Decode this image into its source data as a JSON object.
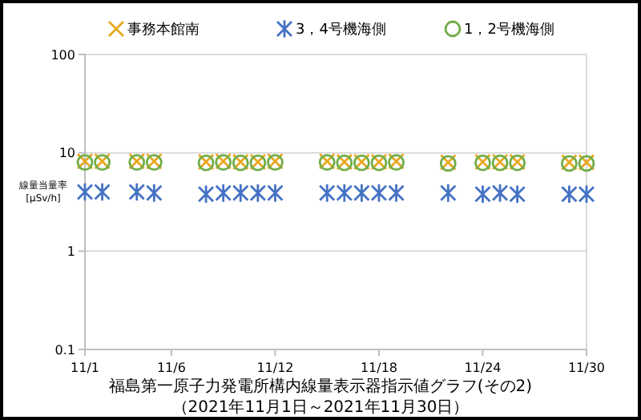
{
  "chart_data": {
    "type": "scatter",
    "title": "福島第一原子力発電所構内線量表示器指示値グラフ(その2)",
    "subtitle": "（2021年11月1日～2021年11月30日）",
    "ylabel": "線量当量率\n[μSv/h]",
    "log": "y",
    "grid": "y",
    "legend": "top",
    "xlim": [
      "--11-01",
      "--11-30"
    ],
    "xticks": [
      {
        "value": "--11-01",
        "label": "11/1"
      },
      {
        "value": "--11-06",
        "label": "11/6"
      },
      {
        "value": "--11-12",
        "label": "11/12"
      },
      {
        "value": "--11-18",
        "label": "11/18"
      },
      {
        "value": "--11-24",
        "label": "11/24"
      },
      {
        "value": "--11-30",
        "label": "11/30"
      }
    ],
    "ylim": [
      0.1,
      100
    ],
    "yticks": [
      0.1,
      1,
      10,
      100
    ],
    "x": [
      "--11-01",
      "--11-02",
      "--11-04",
      "--11-05",
      "--11-08",
      "--11-09",
      "--11-10",
      "--11-11",
      "--11-12",
      "--11-15",
      "--11-16",
      "--11-17",
      "--11-18",
      "--11-19",
      "--11-22",
      "--11-24",
      "--11-25",
      "--11-26",
      "--11-29",
      "--11-30"
    ],
    "series": [
      {
        "name": "事務本館南",
        "color": "#e8a820",
        "marker": "cross",
        "values": [
          8.2,
          8.2,
          8.2,
          8.2,
          8.1,
          8.2,
          8.1,
          8.1,
          8.2,
          8.2,
          8.1,
          8.1,
          8.1,
          8.2,
          8.0,
          8.1,
          8.1,
          8.1,
          8.0,
          8.0
        ]
      },
      {
        "name": "3，4号機海側",
        "color": "#4472c4",
        "values": [
          4.0,
          4.0,
          4.0,
          3.9,
          3.8,
          3.9,
          3.9,
          3.9,
          3.9,
          3.9,
          3.9,
          3.9,
          3.9,
          3.9,
          3.9,
          3.8,
          3.9,
          3.8,
          3.8,
          3.8
        ]
      },
      {
        "name": "1，2号機海側",
        "color": "#70ad47",
        "marker": "circle",
        "values": [
          8.0,
          8.0,
          8.0,
          8.0,
          7.9,
          8.0,
          7.9,
          7.9,
          8.0,
          8.0,
          7.9,
          7.9,
          7.9,
          8.0,
          7.8,
          7.9,
          7.9,
          7.9,
          7.8,
          7.8
        ]
      }
    ]
  }
}
